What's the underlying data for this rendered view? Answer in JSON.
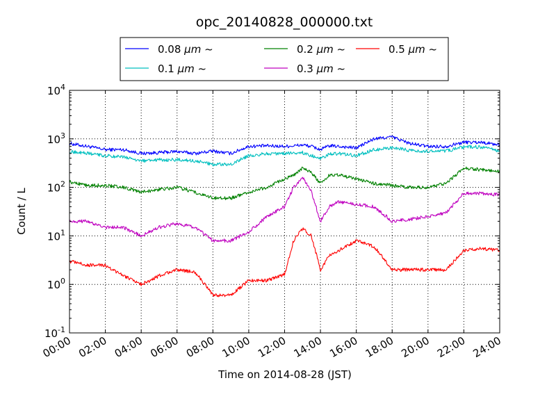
{
  "chart_data": {
    "type": "line",
    "title": "opc_20140828_000000.txt",
    "xlabel": "Time on 2014-08-28 (JST)",
    "ylabel": "Count / L",
    "yscale": "log",
    "xlim": [
      "2014-08-28 00:00",
      "2014-08-29 00:00"
    ],
    "ylim": [
      0.1,
      10000
    ],
    "grid": true,
    "legend_position": "top",
    "x_tick_labels": [
      "00:00",
      "02:00",
      "04:00",
      "06:00",
      "08:00",
      "10:00",
      "12:00",
      "14:00",
      "16:00",
      "18:00",
      "20:00",
      "22:00",
      "24:00"
    ],
    "y_ticks": [
      {
        "base": "10",
        "exp": "-1"
      },
      {
        "base": "10",
        "exp": "0"
      },
      {
        "base": "10",
        "exp": "1"
      },
      {
        "base": "10",
        "exp": "2"
      },
      {
        "base": "10",
        "exp": "3"
      },
      {
        "base": "10",
        "exp": "4"
      }
    ],
    "x": [
      "00:00",
      "01:00",
      "02:00",
      "03:00",
      "04:00",
      "05:00",
      "06:00",
      "07:00",
      "08:00",
      "09:00",
      "10:00",
      "11:00",
      "12:00",
      "12:30",
      "13:00",
      "13:30",
      "14:00",
      "14:30",
      "15:00",
      "16:00",
      "17:00",
      "18:00",
      "19:00",
      "20:00",
      "21:00",
      "22:00",
      "23:00",
      "24:00"
    ],
    "series": [
      {
        "name": "0.08",
        "unit": "μm",
        "suffix": "~",
        "color": "#0000ff",
        "values": [
          800,
          700,
          600,
          600,
          500,
          520,
          550,
          500,
          560,
          500,
          700,
          720,
          700,
          720,
          750,
          700,
          600,
          720,
          700,
          650,
          1000,
          1100,
          800,
          700,
          700,
          850,
          850,
          750
        ]
      },
      {
        "name": "0.1",
        "unit": "μm",
        "suffix": "~",
        "color": "#00bfbf",
        "values": [
          550,
          500,
          450,
          420,
          350,
          370,
          370,
          350,
          300,
          300,
          450,
          500,
          500,
          510,
          520,
          450,
          400,
          480,
          500,
          450,
          600,
          650,
          580,
          550,
          560,
          680,
          680,
          550
        ]
      },
      {
        "name": "0.2",
        "unit": "μm",
        "suffix": "~",
        "color": "#008000",
        "values": [
          130,
          110,
          110,
          100,
          80,
          90,
          100,
          80,
          60,
          60,
          80,
          100,
          150,
          180,
          250,
          200,
          120,
          180,
          180,
          150,
          120,
          110,
          100,
          100,
          120,
          250,
          230,
          220
        ]
      },
      {
        "name": "0.3",
        "unit": "μm",
        "suffix": "~",
        "color": "#bf00bf",
        "values": [
          20,
          20,
          15,
          15,
          10,
          15,
          18,
          15,
          8,
          8,
          12,
          25,
          40,
          100,
          160,
          80,
          20,
          40,
          50,
          45,
          40,
          20,
          22,
          25,
          30,
          75,
          75,
          70
        ]
      },
      {
        "name": "0.5",
        "unit": "μm",
        "suffix": "~",
        "color": "#ff0000",
        "values": [
          3,
          2.5,
          2.5,
          1.5,
          1,
          1.5,
          2,
          1.8,
          0.6,
          0.6,
          1.2,
          1.2,
          1.6,
          8,
          14,
          10,
          2,
          4,
          5,
          8,
          6,
          2,
          2,
          2,
          2,
          5,
          5.5,
          5
        ]
      }
    ]
  }
}
